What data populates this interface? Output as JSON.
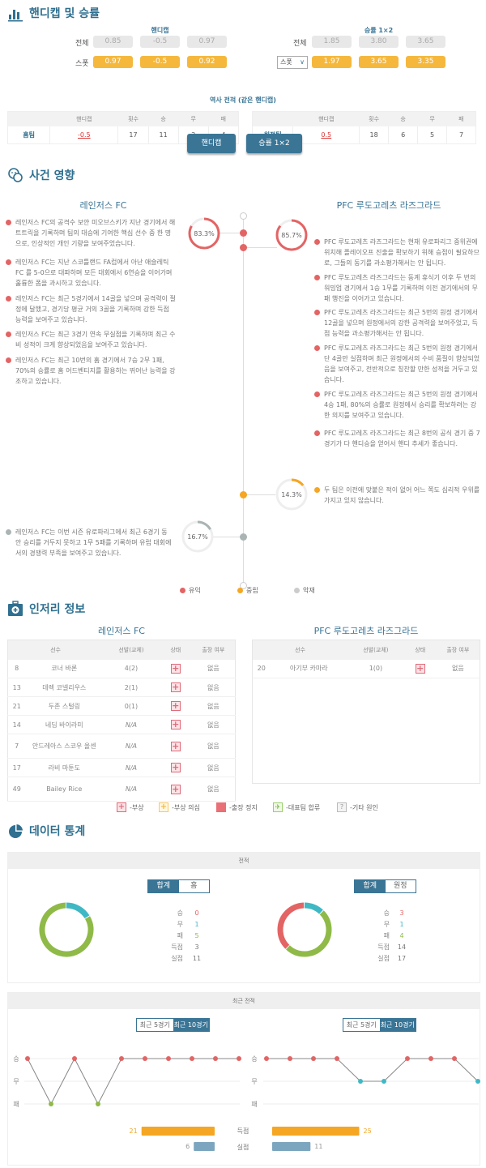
{
  "odds": {
    "title": "핸디캡 및 승률",
    "handicap": {
      "header": "핸디캡",
      "rows": [
        {
          "label": "전체",
          "values": [
            "0.85",
            "-0.5",
            "0.97"
          ]
        },
        {
          "label": "스폿",
          "values": [
            "0.97",
            "-0.5",
            "0.92"
          ]
        }
      ]
    },
    "winrate": {
      "header": "승률 1×2",
      "rows": [
        {
          "label": "전체",
          "values": [
            "1.85",
            "3.80",
            "3.65"
          ]
        },
        {
          "label": "스폿",
          "values": [
            "1.97",
            "3.65",
            "3.35"
          ]
        }
      ]
    },
    "history_title": "역사 전적  (같은 핸디캡)",
    "columns": [
      "",
      "핸디캡",
      "횟수",
      "승",
      "무",
      "패"
    ],
    "home": [
      "홈팀",
      "-0.5",
      "17",
      "11",
      "2",
      "4"
    ],
    "away": [
      "원정팀",
      "0.5",
      "18",
      "6",
      "5",
      "7"
    ],
    "buttons": [
      "핸디캡",
      "승률 1×2"
    ]
  },
  "impact": {
    "title": "사건 영향",
    "home_team": "레인저스 FC",
    "away_team": "PFC 루도고레츠 라즈그라드",
    "home_positive_pct": "83.3%",
    "away_positive_pct": "85.7%",
    "neutral_pct": "14.3%",
    "home_negative_pct": "16.7%",
    "home_positive": [
      "레인저스 FC의 공격수 보얀 미오브스키가 지난 경기에서 해트트릭을 기록하며 팀의 대승에 기여한 핵심 선수 중 한 명으로, 인상적인 개인 기량을 보여주었습니다.",
      "레인저스 FC는 지난 스코틀랜드 FA컵에서 아난 애슬레틱 FC 를 5-0으로 대파하며 모든 대회에서 6연승을 이어가며 훌륭한 폼을 과시하고 있습니다.",
      "레인저스 FC는 최근 5경기에서 14골을 넣으며 공격력이 절정에 달했고, 경기당 평균 거의 3골을 기록하며 강한 득점 능력을 보여주고 있습니다.",
      "레인저스 FC는 최근 3경기 연속 무실점을 기록하며 최근 수비 성적이 크게 향상되었음을 보여주고 있습니다.",
      "레인저스 FC는 최근 10번의 홈 경기에서 7승 2무 1패, 70%의 승률로 홈 어드벤티지를 활용하는 뛰어난 능력을 강조하고 있습니다."
    ],
    "away_positive": [
      "PFC 루도고레츠 라즈그라드는 현재 유로파리그 중위권에 위치해 플레이오프 진출을 확보하기 위해 승점이 필요하므로, 그들의 동기를 과소평가해서는 안 됩니다.",
      "PFC 루도고레츠 라즈그라드는 동계 휴식기 이후 두 번의 워밍업 경기에서 1승 1무를 기록하며 이전 경기에서의 무패 행진을 이어가고 있습니다.",
      "PFC 루도고레츠 라즈그라드는 최근 5번의 원정 경기에서 12골을 넣으며 원정에서의 강한 공격력을 보여주었고, 득점 능력을 과소평가해서는 안 됩니다.",
      "PFC 루도고레츠 라즈그라드는 최근 5번의 원정 경기에서 단 4골만 실점하며 최근 원정에서의 수비 품질이 향상되었음을 보여주고, 전반적으로 칭찬할 만한 성적을 거두고 있습니다.",
      "PFC 루도고레츠 라즈그라드는 최근 5번의 원정 경기에서 4승 1패, 80%의 승률로 원정에서 승리를 확보하려는 강한 의지를 보여주고 있습니다.",
      "PFC 루도고레츠 라즈그라드는 최근 8번의 공식 경기 중 7경기가 다 핸디승을 얻어서 핸디 추세가 좋습니다."
    ],
    "neutral": "두 팀은 이전에 맞붙은 적이 없어 어느 쪽도 심리적 우위를 가지고 있지 않습니다.",
    "home_negative": "레인저스 FC는 이번 시즌 유로파리그에서 최근 6경기 동안 승리를 거두지 못하고 1무 5패를 기록하며 유럽 대회에서의 경쟁력 부족을 보여주고 있습니다.",
    "legend": [
      "유익",
      "중립",
      "악재"
    ],
    "colors": {
      "positive": "#e36464",
      "neutral": "#f5a623",
      "negative": "#b0b8b8"
    }
  },
  "injury": {
    "title": "인저리 정보",
    "home_team": "레인저스 FC",
    "away_team": "PFC 루도고레츠 라즈그라드",
    "columns": [
      "선수",
      "선발(교체)",
      "상태",
      "출장 여부"
    ],
    "home": [
      [
        "8",
        "코너 바론",
        "4(2)",
        "없음"
      ],
      [
        "13",
        "데렉 코넬리우스",
        "2(1)",
        "없음"
      ],
      [
        "21",
        "두존 스털링",
        "0(1)",
        "없음"
      ],
      [
        "14",
        "네딤 바이라미",
        "N/A",
        "없음"
      ],
      [
        "7",
        "안드레아스 스코우 올센",
        "N/A",
        "없음"
      ],
      [
        "17",
        "라비 마툰도",
        "N/A",
        "없음"
      ],
      [
        "49",
        "Bailey Rice",
        "N/A",
        "없음"
      ]
    ],
    "away": [
      [
        "20",
        "아기부 카마라",
        "1(0)",
        "없음"
      ]
    ],
    "legend": [
      "-부상",
      "-부상 의심",
      "-출장 정지",
      "-대표팀 합류",
      "-기타 원인"
    ]
  },
  "stats": {
    "title": "데이터 통계",
    "record_header": "전적",
    "home_toggle": [
      "합계",
      "홈"
    ],
    "away_toggle": [
      "합계",
      "원정"
    ],
    "labels": [
      "승",
      "무",
      "패",
      "득점",
      "실점"
    ],
    "home_values": [
      "0",
      "1",
      "5",
      "3",
      "11"
    ],
    "away_values": [
      "3",
      "1",
      "4",
      "14",
      "17"
    ],
    "recent_header": "최근 전적",
    "recent_toggle": [
      "최근 5경기",
      "최근 10경기"
    ],
    "axis": [
      "승",
      "무",
      "패"
    ],
    "home_form": [
      "승",
      "패",
      "승",
      "패",
      "승",
      "승",
      "승",
      "승",
      "승",
      "승"
    ],
    "away_form": [
      "승",
      "승",
      "승",
      "승",
      "무",
      "무",
      "승",
      "승",
      "승",
      "무"
    ],
    "goal_labels": [
      "득점",
      "실점"
    ],
    "home_scored": "21",
    "home_conceded": "6",
    "away_scored": "25",
    "away_conceded": "11",
    "colors": {
      "win": "#e36464",
      "draw": "#3fb8c4",
      "loss": "#8fba48",
      "scored": "#f5a623",
      "conceded": "#7ca6bf"
    }
  }
}
